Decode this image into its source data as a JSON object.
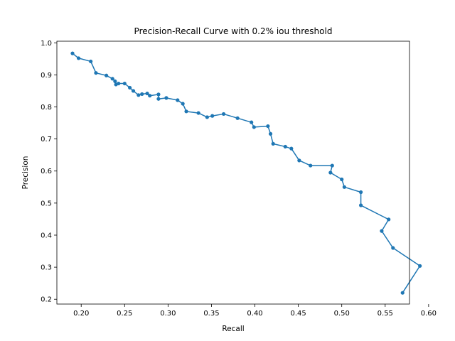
{
  "chart_data": {
    "type": "line",
    "title": "Precision-Recall Curve with 0.2% iou threshold",
    "xlabel": "Recall",
    "ylabel": "Precision",
    "xlim": [
      0.172,
      0.578
    ],
    "ylim": [
      0.185,
      1.005
    ],
    "xticks": [
      0.2,
      0.25,
      0.3,
      0.35,
      0.4,
      0.45,
      0.5,
      0.55,
      0.6
    ],
    "xtick_labels": [
      "0.20",
      "0.25",
      "0.30",
      "0.35",
      "0.40",
      "0.45",
      "0.50",
      "0.55",
      "0.60"
    ],
    "yticks": [
      0.2,
      0.3,
      0.4,
      0.5,
      0.6,
      0.7,
      0.8,
      0.9,
      1.0
    ],
    "ytick_labels": [
      "0.2",
      "0.3",
      "0.4",
      "0.5",
      "0.6",
      "0.7",
      "0.8",
      "0.9",
      "1.0"
    ],
    "grid": false,
    "marker": "circle",
    "color": "#1f77b4",
    "series": [
      {
        "x": [
          0.19,
          0.197,
          0.211,
          0.217,
          0.229,
          0.236,
          0.239,
          0.24,
          0.243,
          0.25,
          0.256,
          0.26,
          0.266,
          0.27,
          0.276,
          0.279,
          0.289,
          0.289,
          0.298,
          0.311,
          0.317,
          0.321,
          0.335,
          0.345,
          0.351,
          0.364,
          0.38,
          0.396,
          0.399,
          0.415,
          0.418,
          0.421,
          0.435,
          0.442,
          0.451,
          0.464,
          0.489,
          0.487,
          0.5,
          0.503,
          0.522,
          0.522,
          0.554,
          0.546,
          0.559,
          0.59,
          0.57
        ],
        "y": [
          0.967,
          0.952,
          0.942,
          0.906,
          0.898,
          0.888,
          0.88,
          0.87,
          0.873,
          0.873,
          0.86,
          0.85,
          0.837,
          0.84,
          0.842,
          0.835,
          0.839,
          0.825,
          0.828,
          0.821,
          0.81,
          0.786,
          0.781,
          0.768,
          0.772,
          0.778,
          0.765,
          0.752,
          0.737,
          0.74,
          0.716,
          0.685,
          0.676,
          0.67,
          0.633,
          0.617,
          0.617,
          0.595,
          0.574,
          0.55,
          0.534,
          0.493,
          0.449,
          0.413,
          0.36,
          0.304,
          0.22
        ]
      }
    ]
  }
}
